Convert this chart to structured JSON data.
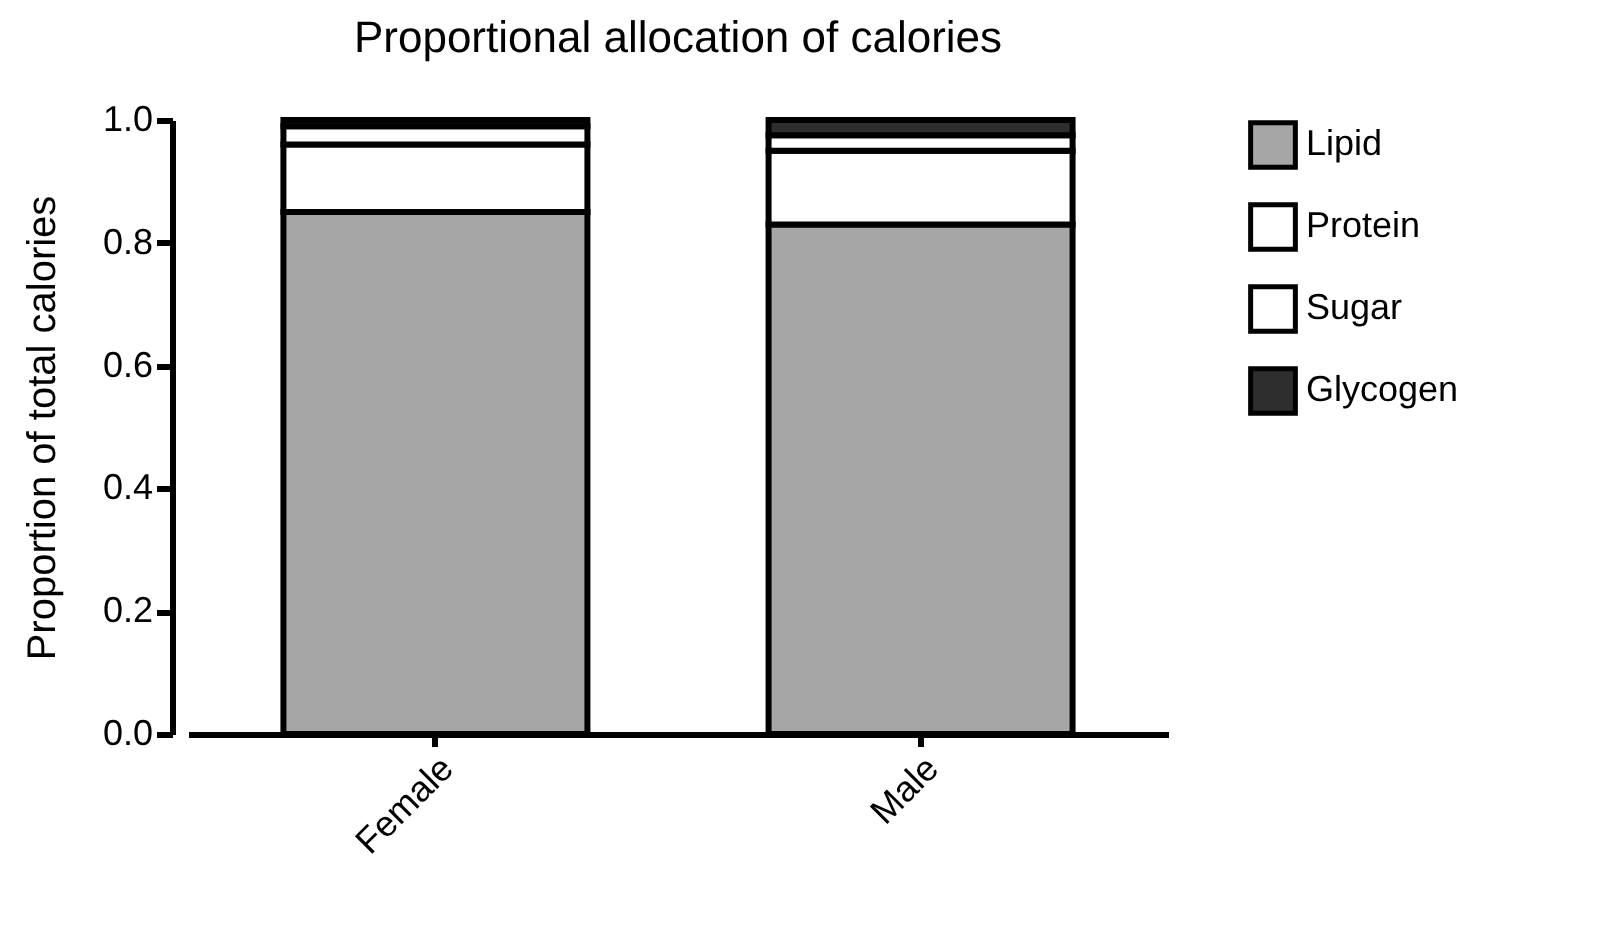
{
  "chart_data": {
    "type": "bar",
    "title": "Proportional allocation of calories",
    "ylabel": "Proportion of total calories",
    "categories": [
      "Female",
      "Male"
    ],
    "stacked": true,
    "series": [
      {
        "name": "Lipid",
        "color": "#a6a6a6",
        "values": [
          0.85,
          0.83
        ]
      },
      {
        "name": "Protein",
        "color": "#ffffff",
        "values": [
          0.11,
          0.12
        ]
      },
      {
        "name": "Sugar",
        "color": "#ffffff",
        "values": [
          0.03,
          0.025
        ]
      },
      {
        "name": "Glycogen",
        "color": "#2e2e2e",
        "values": [
          0.01,
          0.025
        ]
      }
    ],
    "ylim": [
      0,
      1
    ],
    "yticks": [
      {
        "value": 0,
        "label": "0.0"
      },
      {
        "value": 0.2,
        "label": "0.2"
      },
      {
        "value": 0.4,
        "label": "0.4"
      },
      {
        "value": 0.6,
        "label": "0.6"
      },
      {
        "value": 0.8,
        "label": "0.8"
      },
      {
        "value": 1,
        "label": "1.0"
      }
    ],
    "grid": false,
    "legend": "top right"
  }
}
